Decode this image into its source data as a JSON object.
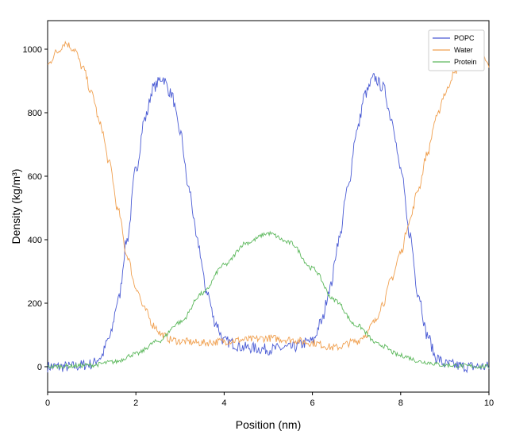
{
  "chart_data": {
    "type": "line",
    "title": "",
    "xlabel": "Position (nm)",
    "ylabel": "Density (kg/m³)",
    "xlim": [
      0,
      10
    ],
    "ylim": [
      -80,
      1090
    ],
    "xticks": [
      0,
      2,
      4,
      6,
      8,
      10
    ],
    "yticks": [
      0,
      200,
      400,
      600,
      800,
      1000
    ],
    "grid": false,
    "legend_position": "top-right",
    "series": [
      {
        "name": "POPC",
        "color": "#4a5bd4",
        "x": [
          0,
          0.5,
          1.0,
          1.2,
          1.4,
          1.6,
          1.8,
          2.0,
          2.2,
          2.4,
          2.6,
          2.8,
          3.0,
          3.2,
          3.4,
          3.6,
          3.8,
          4.0,
          4.5,
          5.0,
          5.5,
          6.0,
          6.2,
          6.4,
          6.6,
          6.8,
          7.0,
          7.2,
          7.4,
          7.6,
          7.8,
          8.0,
          8.2,
          8.4,
          8.6,
          8.8,
          9.0,
          9.5,
          10.0
        ],
        "y": [
          0,
          0,
          8,
          30,
          90,
          210,
          400,
          620,
          780,
          880,
          910,
          860,
          740,
          560,
          390,
          240,
          140,
          80,
          60,
          55,
          60,
          80,
          140,
          250,
          400,
          560,
          740,
          860,
          910,
          880,
          780,
          620,
          420,
          230,
          100,
          30,
          8,
          0,
          0
        ]
      },
      {
        "name": "Water",
        "color": "#f0a050",
        "x": [
          0,
          0.2,
          0.4,
          0.6,
          0.8,
          1.0,
          1.2,
          1.4,
          1.6,
          1.8,
          2.0,
          2.2,
          2.4,
          2.6,
          2.8,
          3.0,
          3.5,
          4.0,
          4.5,
          5.0,
          5.5,
          6.0,
          6.5,
          7.0,
          7.2,
          7.4,
          7.6,
          7.8,
          8.0,
          8.2,
          8.4,
          8.6,
          8.8,
          9.0,
          9.2,
          9.4,
          9.6,
          9.8,
          10.0
        ],
        "y": [
          950,
          990,
          1020,
          1000,
          940,
          860,
          760,
          640,
          490,
          350,
          250,
          180,
          130,
          100,
          85,
          80,
          75,
          80,
          85,
          90,
          85,
          75,
          60,
          80,
          100,
          140,
          200,
          280,
          360,
          460,
          560,
          670,
          780,
          860,
          920,
          980,
          1000,
          990,
          950
        ]
      },
      {
        "name": "Protein",
        "color": "#5cb85c",
        "x": [
          0,
          0.5,
          1.0,
          1.5,
          2.0,
          2.5,
          3.0,
          3.5,
          4.0,
          4.5,
          5.0,
          5.5,
          6.0,
          6.5,
          7.0,
          7.5,
          8.0,
          8.5,
          9.0,
          9.5,
          10.0
        ],
        "y": [
          0,
          2,
          5,
          15,
          40,
          80,
          140,
          230,
          320,
          390,
          420,
          390,
          310,
          210,
          130,
          70,
          35,
          15,
          5,
          2,
          0
        ]
      }
    ]
  }
}
